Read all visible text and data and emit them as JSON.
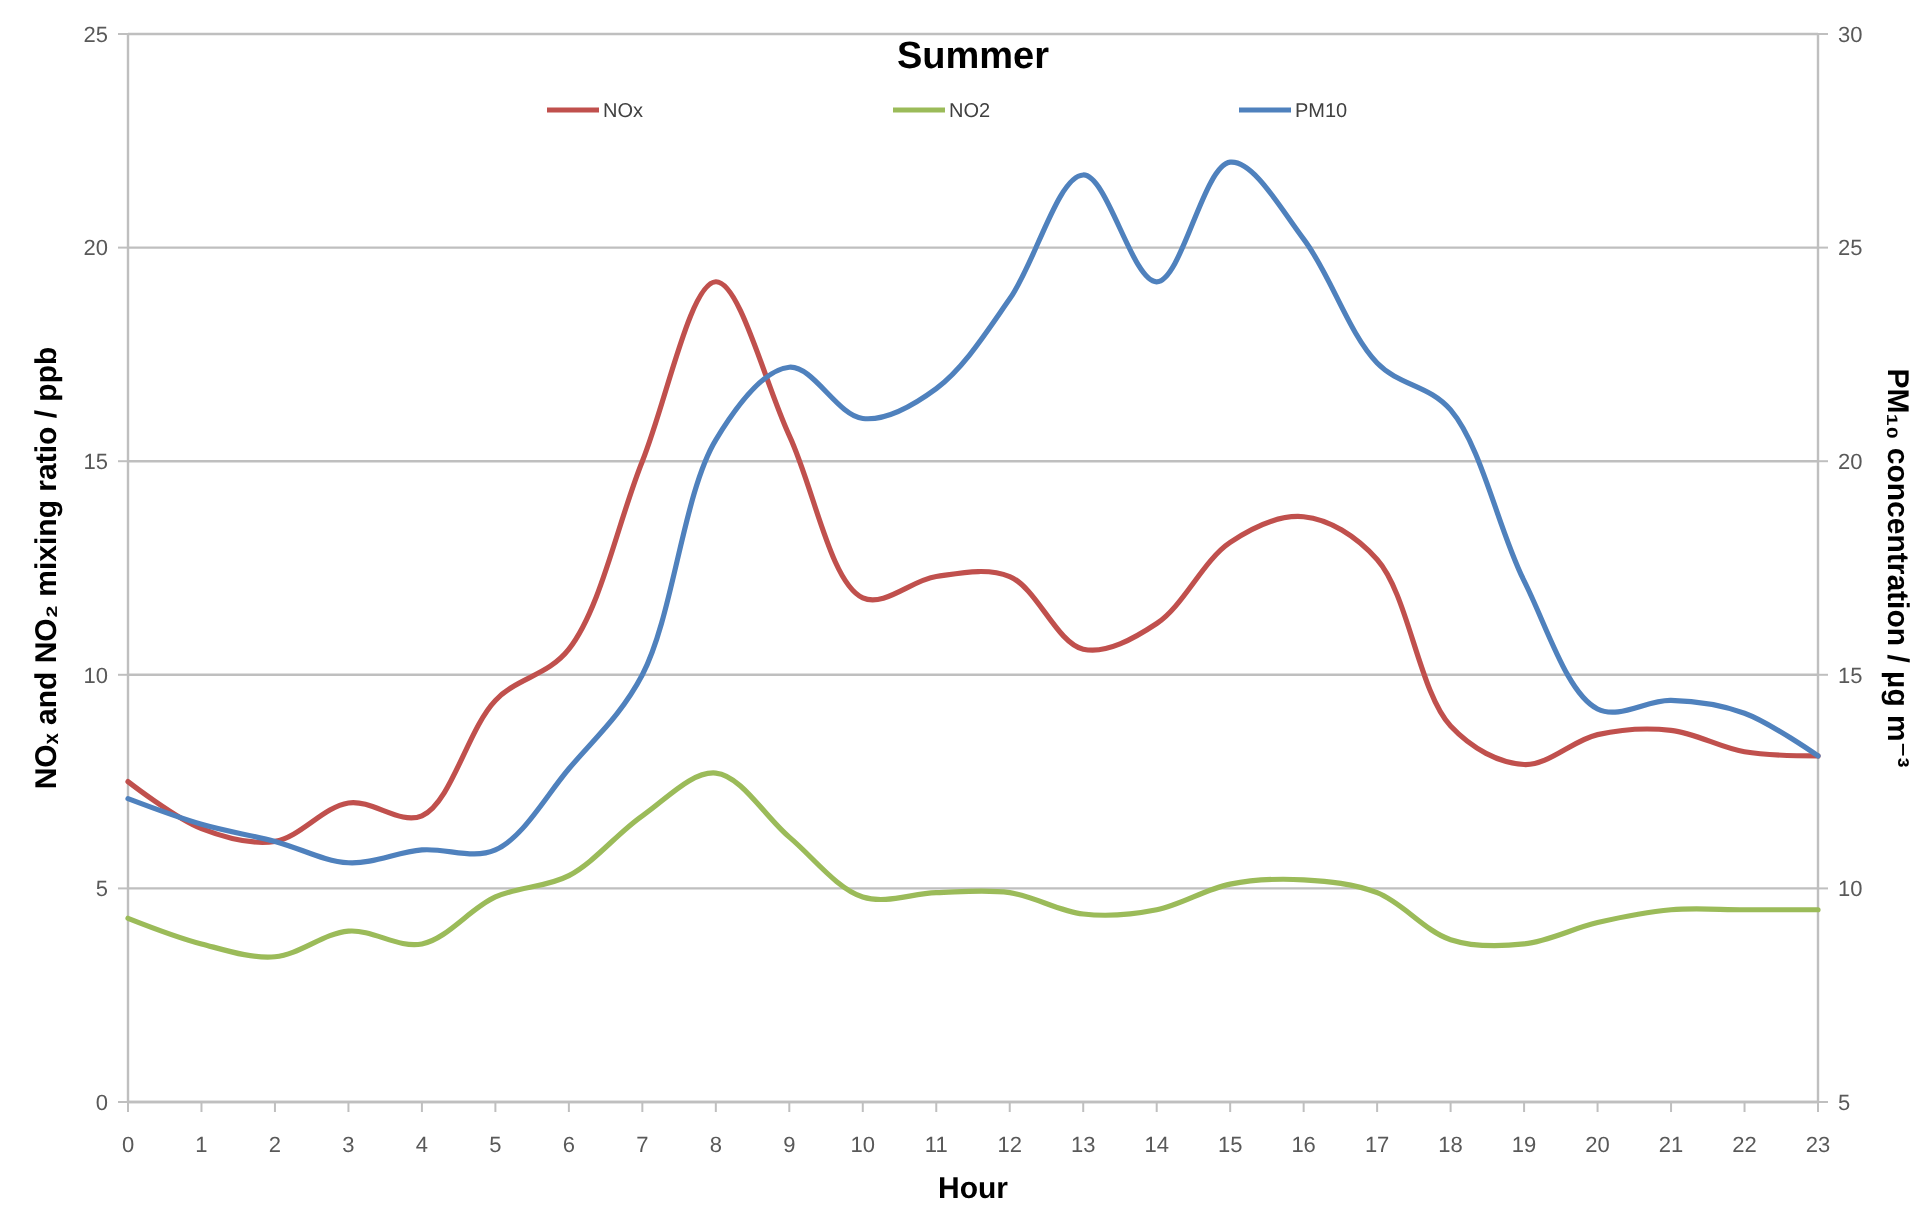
{
  "chart_data": {
    "type": "line",
    "title": "Summer",
    "xlabel": "Hour",
    "ylabel": "NOₓ and NO₂ mixing ratio / ppb",
    "y2label": "PM₁₀ concentration / µg m⁻³",
    "x": [
      0,
      1,
      2,
      3,
      4,
      5,
      6,
      7,
      8,
      9,
      10,
      11,
      12,
      13,
      14,
      15,
      16,
      17,
      18,
      19,
      20,
      21,
      22,
      23
    ],
    "xlim": [
      0,
      23
    ],
    "xticks": [
      0,
      1,
      2,
      3,
      4,
      5,
      6,
      7,
      8,
      9,
      10,
      11,
      12,
      13,
      14,
      15,
      16,
      17,
      18,
      19,
      20,
      21,
      22,
      23
    ],
    "ylim": [
      0,
      25
    ],
    "yticks": [
      0,
      5,
      10,
      15,
      20,
      25
    ],
    "y2lim": [
      5,
      30
    ],
    "y2ticks": [
      5,
      10,
      15,
      20,
      25,
      30
    ],
    "grid": "y",
    "legend": "top",
    "series": [
      {
        "name": "NOx",
        "color": "#c0504d",
        "values": [
          7.5,
          6.4,
          6.1,
          7.0,
          6.7,
          9.4,
          10.6,
          15.0,
          19.2,
          15.6,
          11.8,
          12.3,
          12.3,
          10.6,
          11.2,
          13.1,
          13.7,
          12.7,
          8.8,
          7.9,
          8.6,
          8.7,
          8.2,
          8.1
        ]
      },
      {
        "name": "NO2",
        "color": "#9bbb59",
        "values": [
          4.3,
          3.7,
          3.4,
          4.0,
          3.7,
          4.8,
          5.3,
          6.7,
          7.7,
          6.2,
          4.8,
          4.9,
          4.9,
          4.4,
          4.5,
          5.1,
          5.2,
          4.9,
          3.8,
          3.7,
          4.2,
          4.5,
          4.5,
          4.5
        ]
      },
      {
        "name": "PM10",
        "color": "#4f81bd",
        "axis": "y2",
        "values": [
          12.1,
          11.5,
          11.1,
          10.6,
          10.9,
          10.9,
          12.8,
          15.0,
          20.5,
          22.2,
          21.0,
          21.7,
          23.8,
          26.7,
          24.2,
          27.0,
          25.2,
          22.3,
          21.2,
          17.2,
          14.2,
          14.4,
          14.1,
          13.1
        ]
      }
    ]
  }
}
